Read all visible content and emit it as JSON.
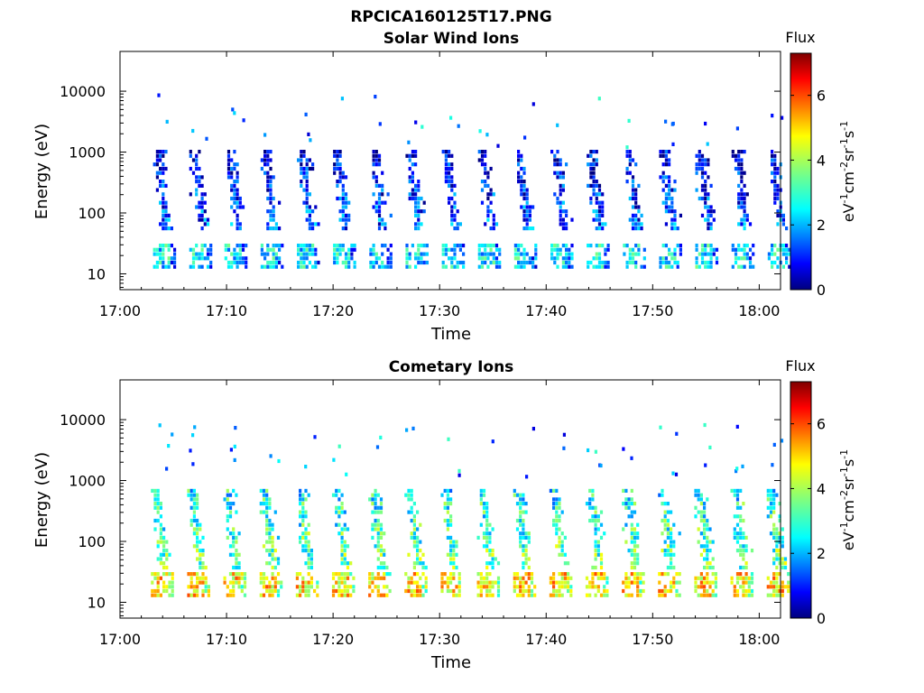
{
  "figure": {
    "title": "RPCICA160125T17.PNG"
  },
  "chart_data": [
    {
      "type": "heatmap",
      "title": "Solar Wind Ions",
      "xlabel": "Time",
      "ylabel": "Energy (eV)",
      "x_ticks": [
        "17:00",
        "17:10",
        "17:20",
        "17:30",
        "17:40",
        "17:50",
        "18:00"
      ],
      "x_range_minutes": [
        0,
        62
      ],
      "y_ticks": [
        "10",
        "100",
        "1000",
        "10000"
      ],
      "y_scale": "log",
      "y_range": [
        5.5,
        45000
      ],
      "colorbar": {
        "label": "Flux",
        "unit": "eV-1cm-2sr-1s-1",
        "ticks": [
          "0",
          "2",
          "4",
          "6"
        ],
        "range": [
          0,
          7.3
        ],
        "colormap": "jet"
      },
      "sweep_start_minutes": [
        3.1,
        6.5,
        9.8,
        13.2,
        16.6,
        20.0,
        23.4,
        26.8,
        30.2,
        33.6,
        37.0,
        40.4,
        43.8,
        47.2,
        50.6,
        54.0,
        57.4,
        60.8
      ],
      "low_band": {
        "energy_eV": [
          14,
          32
        ],
        "intensity": 2.6
      },
      "main_band": {
        "energy_eV": [
          60,
          1200
        ],
        "intensity": 1.5
      }
    },
    {
      "type": "heatmap",
      "title": "Cometary Ions",
      "xlabel": "Time",
      "ylabel": "Energy (eV)",
      "x_ticks": [
        "17:00",
        "17:10",
        "17:20",
        "17:30",
        "17:40",
        "17:50",
        "18:00"
      ],
      "x_range_minutes": [
        0,
        62
      ],
      "y_ticks": [
        "10",
        "100",
        "1000",
        "10000"
      ],
      "y_scale": "log",
      "y_range": [
        5.5,
        45000
      ],
      "colorbar": {
        "label": "Flux",
        "unit": "eV-1cm-2sr-1s-1",
        "ticks": [
          "0",
          "2",
          "4",
          "6"
        ],
        "range": [
          0,
          7.3
        ],
        "colormap": "jet"
      },
      "sweep_start_minutes": [
        2.9,
        6.3,
        9.7,
        13.1,
        16.5,
        19.9,
        23.3,
        26.7,
        30.1,
        33.5,
        36.9,
        40.3,
        43.7,
        47.1,
        50.5,
        53.9,
        57.3,
        60.7
      ],
      "low_band": {
        "energy_eV": [
          14,
          32
        ],
        "intensity": 4.8
      },
      "main_band": {
        "energy_eV": [
          40,
          800
        ],
        "intensity": 3.5
      }
    }
  ]
}
